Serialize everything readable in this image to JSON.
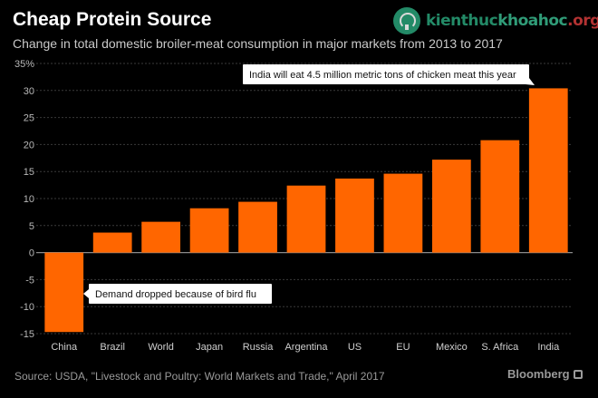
{
  "header": {
    "title": "Cheap Protein Source",
    "subtitle": "Change in total domestic broiler-meat consumption in major markets from 2013 to 2017"
  },
  "watermark": {
    "brand_main": "kienthuc",
    "brand_accent": "khoahoc",
    "brand_tld": ".org",
    "icon": "tree-logo-icon"
  },
  "chart_data": {
    "type": "bar",
    "title": "Cheap Protein Source",
    "subtitle": "Change in total domestic broiler-meat consumption in major markets from 2013 to 2017",
    "categories": [
      "China",
      "Brazil",
      "World",
      "Japan",
      "Russia",
      "Argentina",
      "US",
      "EU",
      "Mexico",
      "S. Africa",
      "India"
    ],
    "values": [
      -14.7,
      3.7,
      5.7,
      8.2,
      9.4,
      12.4,
      13.7,
      14.6,
      17.2,
      20.8,
      30.4
    ],
    "ylim": [
      -15,
      35
    ],
    "yticks": [
      -15,
      -10,
      -5,
      0,
      5,
      10,
      15,
      20,
      25,
      30,
      35
    ],
    "ytick_labels": [
      "-15",
      "-10",
      "-5",
      "0",
      "5",
      "10",
      "15",
      "20",
      "25",
      "30",
      "35%"
    ],
    "xlabel": "",
    "ylabel": "",
    "grid": true,
    "bar_color": "#ff6600",
    "annotations": [
      {
        "category": "India",
        "text": "India will eat 4.5 million metric tons of chicken meat this year"
      },
      {
        "category": "China",
        "text": "Demand dropped because of bird flu"
      }
    ]
  },
  "footer": {
    "source": "Source: USDA, \"Livestock and Poultry: World Markets and Trade,\" April 2017",
    "brand": "Bloomberg",
    "brand_icon": "bloomberg-logo-icon"
  }
}
